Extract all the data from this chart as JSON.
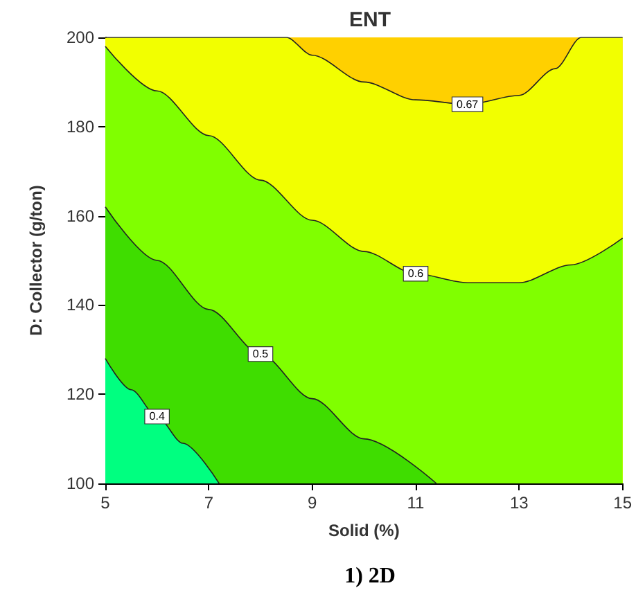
{
  "chart_data": {
    "type": "area",
    "title": "ENT",
    "xlabel": "Solid (%)",
    "ylabel": "D: Collector (g/ton)",
    "annotations": [
      "1) 2D"
    ],
    "xlim": [
      5,
      15
    ],
    "xticks": [
      5,
      7,
      9,
      11,
      13,
      15
    ],
    "ylim": [
      100,
      200
    ],
    "yticks": [
      100,
      120,
      140,
      160,
      180,
      200
    ],
    "grid": false,
    "legend": false,
    "series": [
      {
        "name": "0.67",
        "color": "#f2ff00",
        "x": [
          5,
          8.5,
          9,
          10,
          11,
          12,
          13,
          13.7,
          14.2,
          15
        ],
        "values": [
          200,
          200,
          196,
          190,
          186,
          185,
          187,
          193,
          200,
          200
        ]
      },
      {
        "name": "0.6",
        "color": "#80ff00",
        "x": [
          5,
          6,
          7,
          8,
          9,
          10,
          11,
          12,
          12.6,
          13,
          14,
          15
        ],
        "values": [
          198,
          188,
          178,
          168,
          159,
          152,
          147,
          145,
          145,
          145,
          149,
          155
        ]
      },
      {
        "name": "0.5",
        "color": "#3fdd00",
        "x": [
          5,
          6,
          7,
          8,
          9,
          10,
          11.4
        ],
        "values": [
          162,
          150,
          139,
          129,
          119,
          110,
          100
        ]
      },
      {
        "name": "0.4",
        "color": "#00ff80",
        "x": [
          5,
          5.5,
          6,
          6.5,
          7.2
        ],
        "values": [
          128,
          121,
          115,
          109,
          100
        ]
      }
    ]
  }
}
